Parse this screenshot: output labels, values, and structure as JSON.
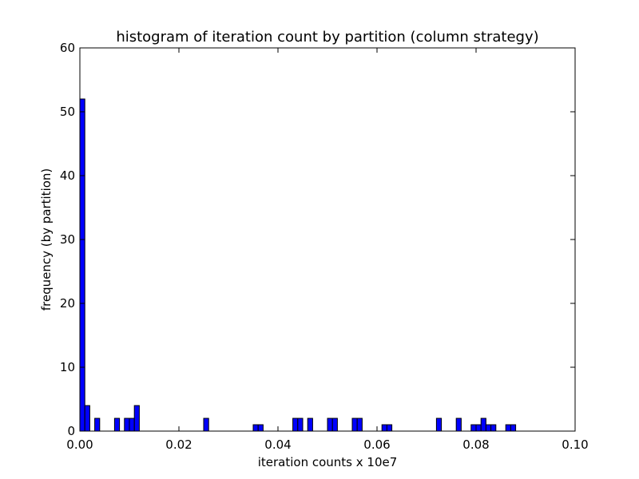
{
  "chart_data": {
    "type": "bar",
    "title": "histogram of iteration count by partition (column strategy)",
    "xlabel": "iteration counts x 10e7",
    "ylabel": "frequency (by partition)",
    "xlim": [
      0.0,
      0.1
    ],
    "ylim": [
      0,
      60
    ],
    "bin_width": 0.001,
    "x_ticks": [
      "0.00",
      "0.02",
      "0.04",
      "0.06",
      "0.08",
      "0.10"
    ],
    "y_ticks": [
      "0",
      "10",
      "20",
      "30",
      "40",
      "50",
      "60"
    ],
    "bar_color": "#0000ff",
    "bins": [
      {
        "x0": 0.0,
        "value": 52
      },
      {
        "x0": 0.001,
        "value": 4
      },
      {
        "x0": 0.003,
        "value": 2
      },
      {
        "x0": 0.007,
        "value": 2
      },
      {
        "x0": 0.009,
        "value": 2
      },
      {
        "x0": 0.01,
        "value": 2
      },
      {
        "x0": 0.011,
        "value": 4
      },
      {
        "x0": 0.025,
        "value": 2
      },
      {
        "x0": 0.035,
        "value": 1
      },
      {
        "x0": 0.036,
        "value": 1
      },
      {
        "x0": 0.043,
        "value": 2
      },
      {
        "x0": 0.044,
        "value": 2
      },
      {
        "x0": 0.046,
        "value": 2
      },
      {
        "x0": 0.05,
        "value": 2
      },
      {
        "x0": 0.051,
        "value": 2
      },
      {
        "x0": 0.055,
        "value": 2
      },
      {
        "x0": 0.056,
        "value": 2
      },
      {
        "x0": 0.061,
        "value": 1
      },
      {
        "x0": 0.062,
        "value": 1
      },
      {
        "x0": 0.072,
        "value": 2
      },
      {
        "x0": 0.076,
        "value": 2
      },
      {
        "x0": 0.079,
        "value": 1
      },
      {
        "x0": 0.08,
        "value": 1
      },
      {
        "x0": 0.081,
        "value": 2
      },
      {
        "x0": 0.082,
        "value": 1
      },
      {
        "x0": 0.083,
        "value": 1
      },
      {
        "x0": 0.086,
        "value": 1
      },
      {
        "x0": 0.087,
        "value": 1
      }
    ]
  }
}
